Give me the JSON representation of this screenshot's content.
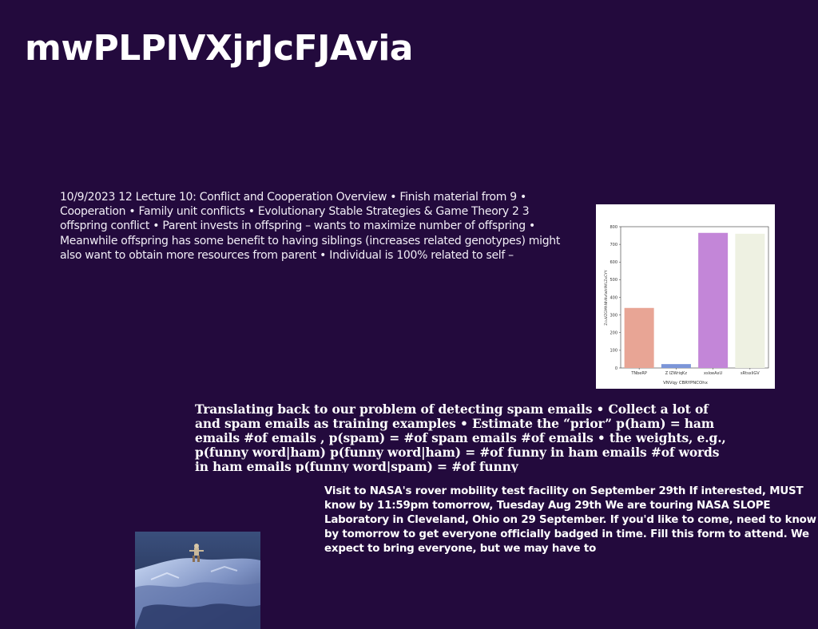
{
  "slide": {
    "title": "mwPLPIVXjrJcFJAvia",
    "block_a": "10/9/2023 12 Lecture 10: Conflict and Cooperation Overview • Finish material from 9 • Cooperation • Family unit conflicts • Evolutionary Stable Strategies & Game Theory 2 3 offspring conflict • Parent invests in offspring – wants to maximize number of offspring • Meanwhile offspring has some benefit to having siblings (increases related genotypes) might also want to obtain more resources from parent • Individual is 100% related to self –",
    "block_b": "Translating back to our problem of detecting spam emails • Collect a lot of and spam emails as training examples • Estimate the “prior” p(ham) = ham emails #of emails , p(spam) = #of spam emails #of emails • the weights, e.g., p(funny word|ham) p(funny word|ham) = #of funny in ham emails #of words in ham emails p(funny word|spam) = #of funny",
    "block_c": "Visit to NASA's rover mobility test facility on September 29th If interested, MUST know by 11:59pm tomorrow, Tuesday Aug 29th We are touring NASA SLOPE Laboratory in Cleveland, Ohio on 29 September. If you'd like to come, need to know by tomorrow to get everyone officially badged in time. Fill this form to attend. We expect to bring everyone, but we may have to"
  },
  "chart_data": {
    "type": "bar",
    "categories": [
      "TNbeRP",
      "Z IZWriqKz",
      "xsloeAxU",
      "sRtsxliGV"
    ],
    "values": [
      340,
      22,
      765,
      760
    ],
    "colors": [
      "#e8a595",
      "#7b95d8",
      "#c386d8",
      "#eef1e2"
    ],
    "xlabel": "VNVqy CBRYPNCOhx",
    "ylabel": "ZcuVZGMhNhNvfwhfAfLZxCYY",
    "ylim": [
      0,
      800
    ],
    "yticks": [
      "0",
      "100",
      "200",
      "300",
      "400",
      "500",
      "600",
      "700",
      "800"
    ],
    "grid": false
  },
  "photo": {
    "description_icon": "lunar-landscape-image"
  }
}
